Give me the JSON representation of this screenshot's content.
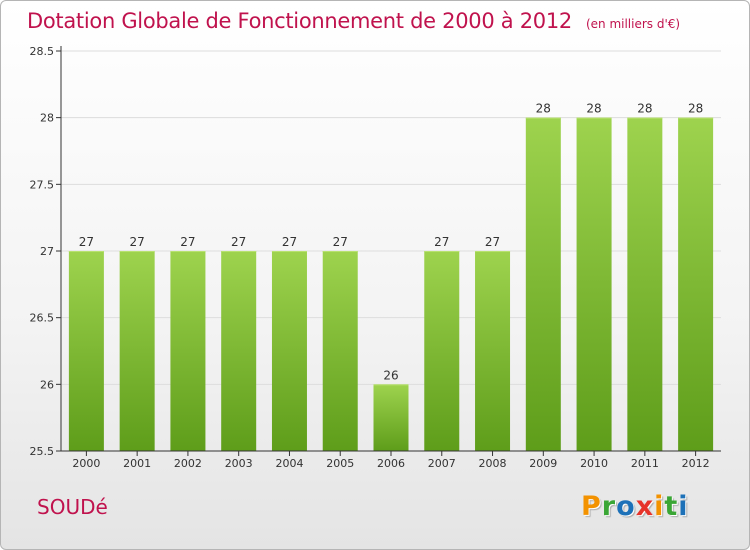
{
  "header": {
    "title": "Dotation Globale de Fonctionnement de 2000 à 2012",
    "subtitle": "(en milliers d'€)"
  },
  "place_name": "SOUDé",
  "logo": {
    "letters": [
      "P",
      "r",
      "o",
      "x",
      "i",
      "t",
      "i"
    ],
    "colors": [
      "#f39200",
      "#3aa635",
      "#1d71b8",
      "#e6332a",
      "#f39200",
      "#3aa635",
      "#1d71b8"
    ]
  },
  "colors": {
    "title": "#c0124d",
    "bar_top": "#9ed34e",
    "bar_bottom": "#5e9d1a",
    "grid": "#dddddd"
  },
  "chart_data": {
    "type": "bar",
    "title": "Dotation Globale de Fonctionnement de 2000 à 2012",
    "subtitle": "(en milliers d'€)",
    "xlabel": "",
    "ylabel": "",
    "categories": [
      "2000",
      "2001",
      "2002",
      "2003",
      "2004",
      "2005",
      "2006",
      "2007",
      "2008",
      "2009",
      "2010",
      "2011",
      "2012"
    ],
    "values": [
      27,
      27,
      27,
      27,
      27,
      27,
      26,
      27,
      27,
      28,
      28,
      28,
      28
    ],
    "data_labels": [
      "27",
      "27",
      "27",
      "27",
      "27",
      "27",
      "26",
      "27",
      "27",
      "28",
      "28",
      "28",
      "28"
    ],
    "ylim": [
      25.5,
      28.5
    ],
    "yticks": [
      25.5,
      26,
      26.5,
      27,
      27.5,
      28,
      28.5
    ],
    "ytick_labels": [
      "25.5",
      "26",
      "26.5",
      "27",
      "27.5",
      "28",
      "28.5"
    ],
    "grid": true,
    "legend": "none"
  }
}
